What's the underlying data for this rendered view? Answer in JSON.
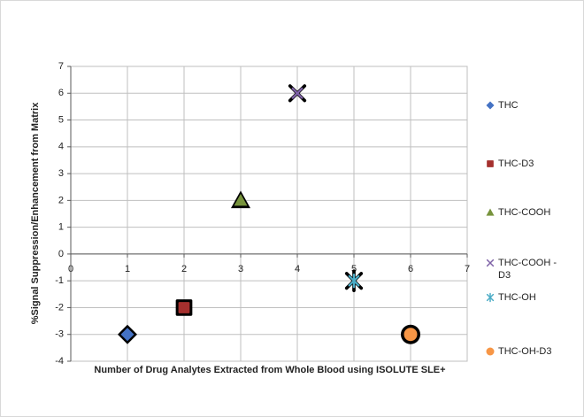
{
  "chart_data": {
    "type": "scatter",
    "x_label": "Number of Drug Analytes Extracted from Whole Blood using ISOLUTE SLE+",
    "y_label": "%Signal Suppression/Enhancement from Matrix",
    "xlim": [
      0,
      7
    ],
    "xticks": [
      0,
      1,
      2,
      3,
      4,
      5,
      6,
      7
    ],
    "ylim": [
      -4,
      7
    ],
    "yticks": [
      -4,
      -3,
      -2,
      -1,
      0,
      1,
      2,
      3,
      4,
      5,
      6,
      7
    ],
    "grid": true,
    "legend": "right",
    "series": [
      {
        "name": "THC",
        "color": "#4472c4",
        "marker": "diamond",
        "x": [
          1
        ],
        "values": [
          -3
        ]
      },
      {
        "name": "THC-D3",
        "color": "#a5302e",
        "marker": "square",
        "x": [
          2
        ],
        "values": [
          -2
        ]
      },
      {
        "name": "THC-COOH",
        "color": "#77933c",
        "marker": "triangle",
        "x": [
          3
        ],
        "values": [
          2
        ]
      },
      {
        "name": "THC-COOH -D3",
        "color": "#7f63a8",
        "marker": "x",
        "x": [
          4
        ],
        "values": [
          6
        ]
      },
      {
        "name": "THC-OH",
        "color": "#4bacc6",
        "marker": "star",
        "x": [
          5
        ],
        "values": [
          -1
        ]
      },
      {
        "name": "THC-OH-D3",
        "color": "#f79646",
        "marker": "circle",
        "x": [
          6
        ],
        "values": [
          -3
        ]
      }
    ]
  }
}
